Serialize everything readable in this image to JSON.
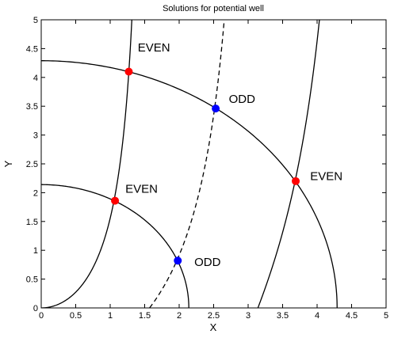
{
  "chart_data": {
    "type": "line",
    "title": "Solutions for potential well",
    "xlabel": "X",
    "ylabel": "Y",
    "xlim": [
      0,
      5
    ],
    "ylim": [
      0,
      5
    ],
    "xticks": [
      "0",
      "0.5",
      "1",
      "1.5",
      "2",
      "2.5",
      "3",
      "3.5",
      "4",
      "4.5",
      "5"
    ],
    "yticks": [
      "0",
      "0.5",
      "1",
      "1.5",
      "2",
      "2.5",
      "3",
      "3.5",
      "4",
      "4.5",
      "5"
    ],
    "grid": false,
    "curves": [
      {
        "kind": "circle",
        "radius": 2.14,
        "style": "solid"
      },
      {
        "kind": "circle",
        "radius": 4.29,
        "style": "solid"
      },
      {
        "kind": "even",
        "branch": 1,
        "style": "solid",
        "note": "y = x tan x, 0 to pi/2"
      },
      {
        "kind": "even",
        "branch": 2,
        "style": "solid",
        "note": "y = x tan x, pi to 3pi/2"
      },
      {
        "kind": "odd",
        "branch": 1,
        "style": "dashed",
        "note": "y = -x cot x, pi/2 to pi"
      }
    ],
    "points": [
      {
        "x": 1.07,
        "y": 1.86,
        "color": "#ff0000"
      },
      {
        "x": 1.27,
        "y": 4.1,
        "color": "#ff0000"
      },
      {
        "x": 3.69,
        "y": 2.2,
        "color": "#ff0000"
      },
      {
        "x": 1.98,
        "y": 0.82,
        "color": "#0000ff"
      },
      {
        "x": 2.53,
        "y": 3.46,
        "color": "#0000ff"
      }
    ],
    "annotations": [
      {
        "text": "EVEN",
        "x": 1.4,
        "y": 4.45
      },
      {
        "text": "EVEN",
        "x": 1.22,
        "y": 2.0
      },
      {
        "text": "EVEN",
        "x": 3.9,
        "y": 2.22
      },
      {
        "text": "ODD",
        "x": 2.72,
        "y": 3.56
      },
      {
        "text": "ODD",
        "x": 2.22,
        "y": 0.73
      }
    ],
    "colors": {
      "even": "#ff0000",
      "odd": "#0000ff",
      "line": "#000000"
    }
  }
}
